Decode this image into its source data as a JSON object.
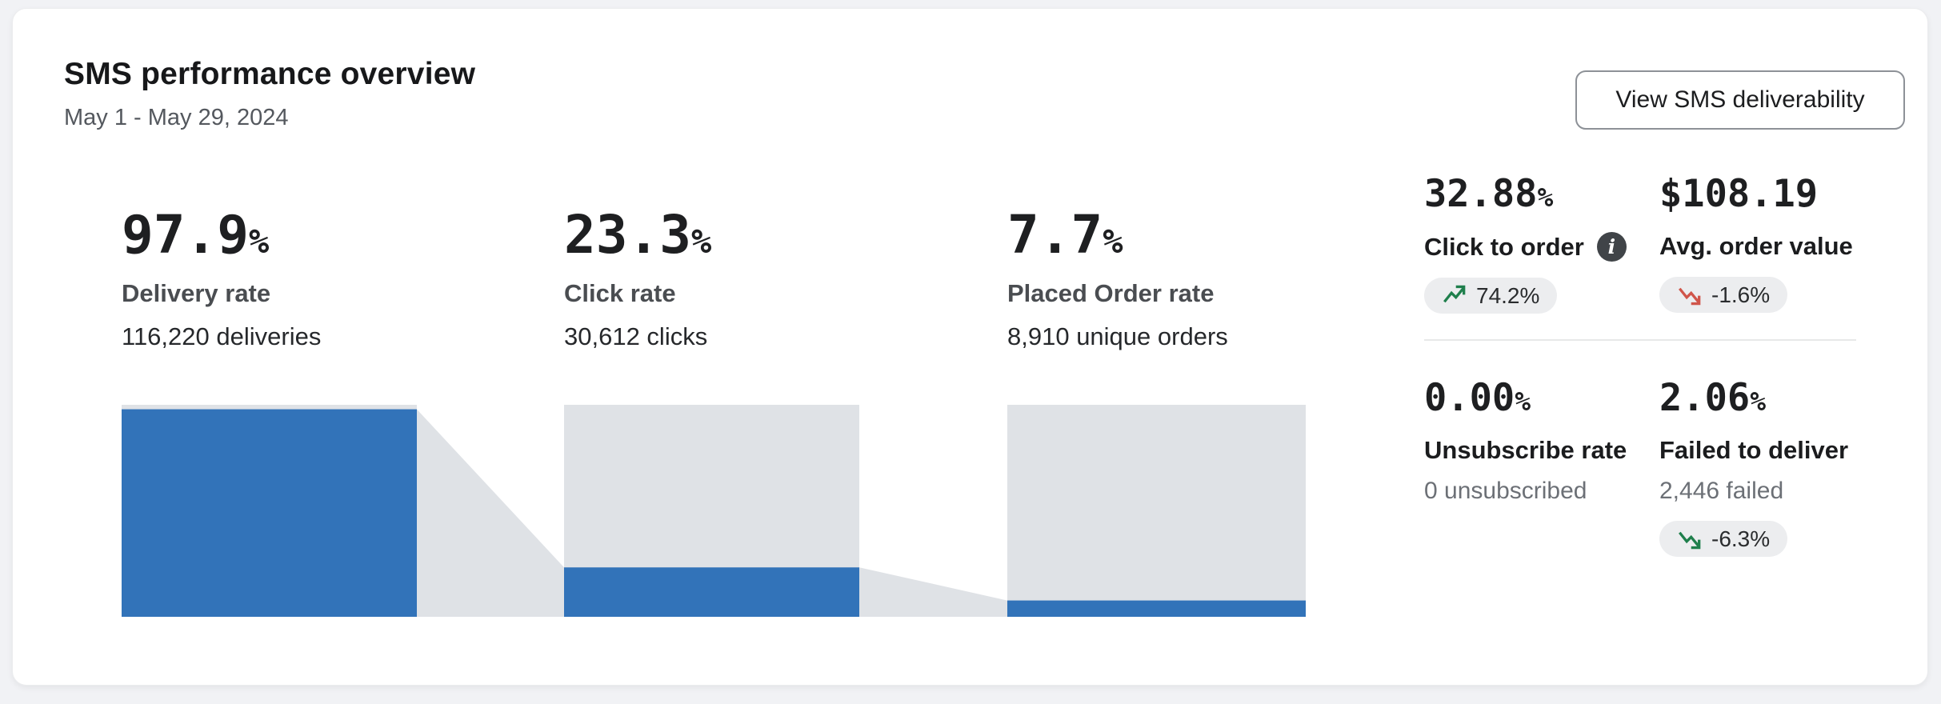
{
  "card": {
    "title": "SMS performance overview",
    "date_range": "May 1 - May 29, 2024",
    "action_button": "View SMS deliverability"
  },
  "funnel": {
    "stages": [
      {
        "value": "97.9",
        "suffix": "%",
        "label": "Delivery rate",
        "sub": "116,220 deliveries",
        "fill_pct": 97.9
      },
      {
        "value": "23.3",
        "suffix": "%",
        "label": "Click rate",
        "sub": "30,612 clicks",
        "fill_pct": 23.3
      },
      {
        "value": "7.7",
        "suffix": "%",
        "label": "Placed Order rate",
        "sub": "8,910 unique orders",
        "fill_pct": 7.7
      }
    ],
    "colors": {
      "bar_fill": "#3273b9",
      "bar_bg": "#dfe2e6"
    }
  },
  "metrics": [
    {
      "value": "32.88",
      "suffix": "%",
      "label": "Click to order",
      "badge": {
        "text": "74.2%",
        "direction": "up",
        "color": "#1f7f4c"
      }
    },
    {
      "value": "$108.19",
      "suffix": "",
      "label": "Avg. order value",
      "badge": {
        "text": "-1.6%",
        "direction": "down",
        "color": "#d0554a"
      }
    },
    {
      "value": "0.00",
      "suffix": "%",
      "label": "Unsubscribe rate",
      "sub": "0 unsubscribed"
    },
    {
      "value": "2.06",
      "suffix": "%",
      "label": "Failed to deliver",
      "sub": "2,446 failed",
      "badge": {
        "text": "-6.3%",
        "direction": "down",
        "color": "#1f7f4c"
      }
    }
  ],
  "chart_data": {
    "type": "bar",
    "subtype": "funnel",
    "title": "SMS performance overview",
    "categories": [
      "Delivery rate",
      "Click rate",
      "Placed Order rate"
    ],
    "values": [
      97.9,
      23.3,
      7.7
    ],
    "counts": [
      116220,
      30612,
      8910
    ],
    "ylim": [
      0,
      100
    ],
    "grid": false,
    "legend": "none"
  }
}
